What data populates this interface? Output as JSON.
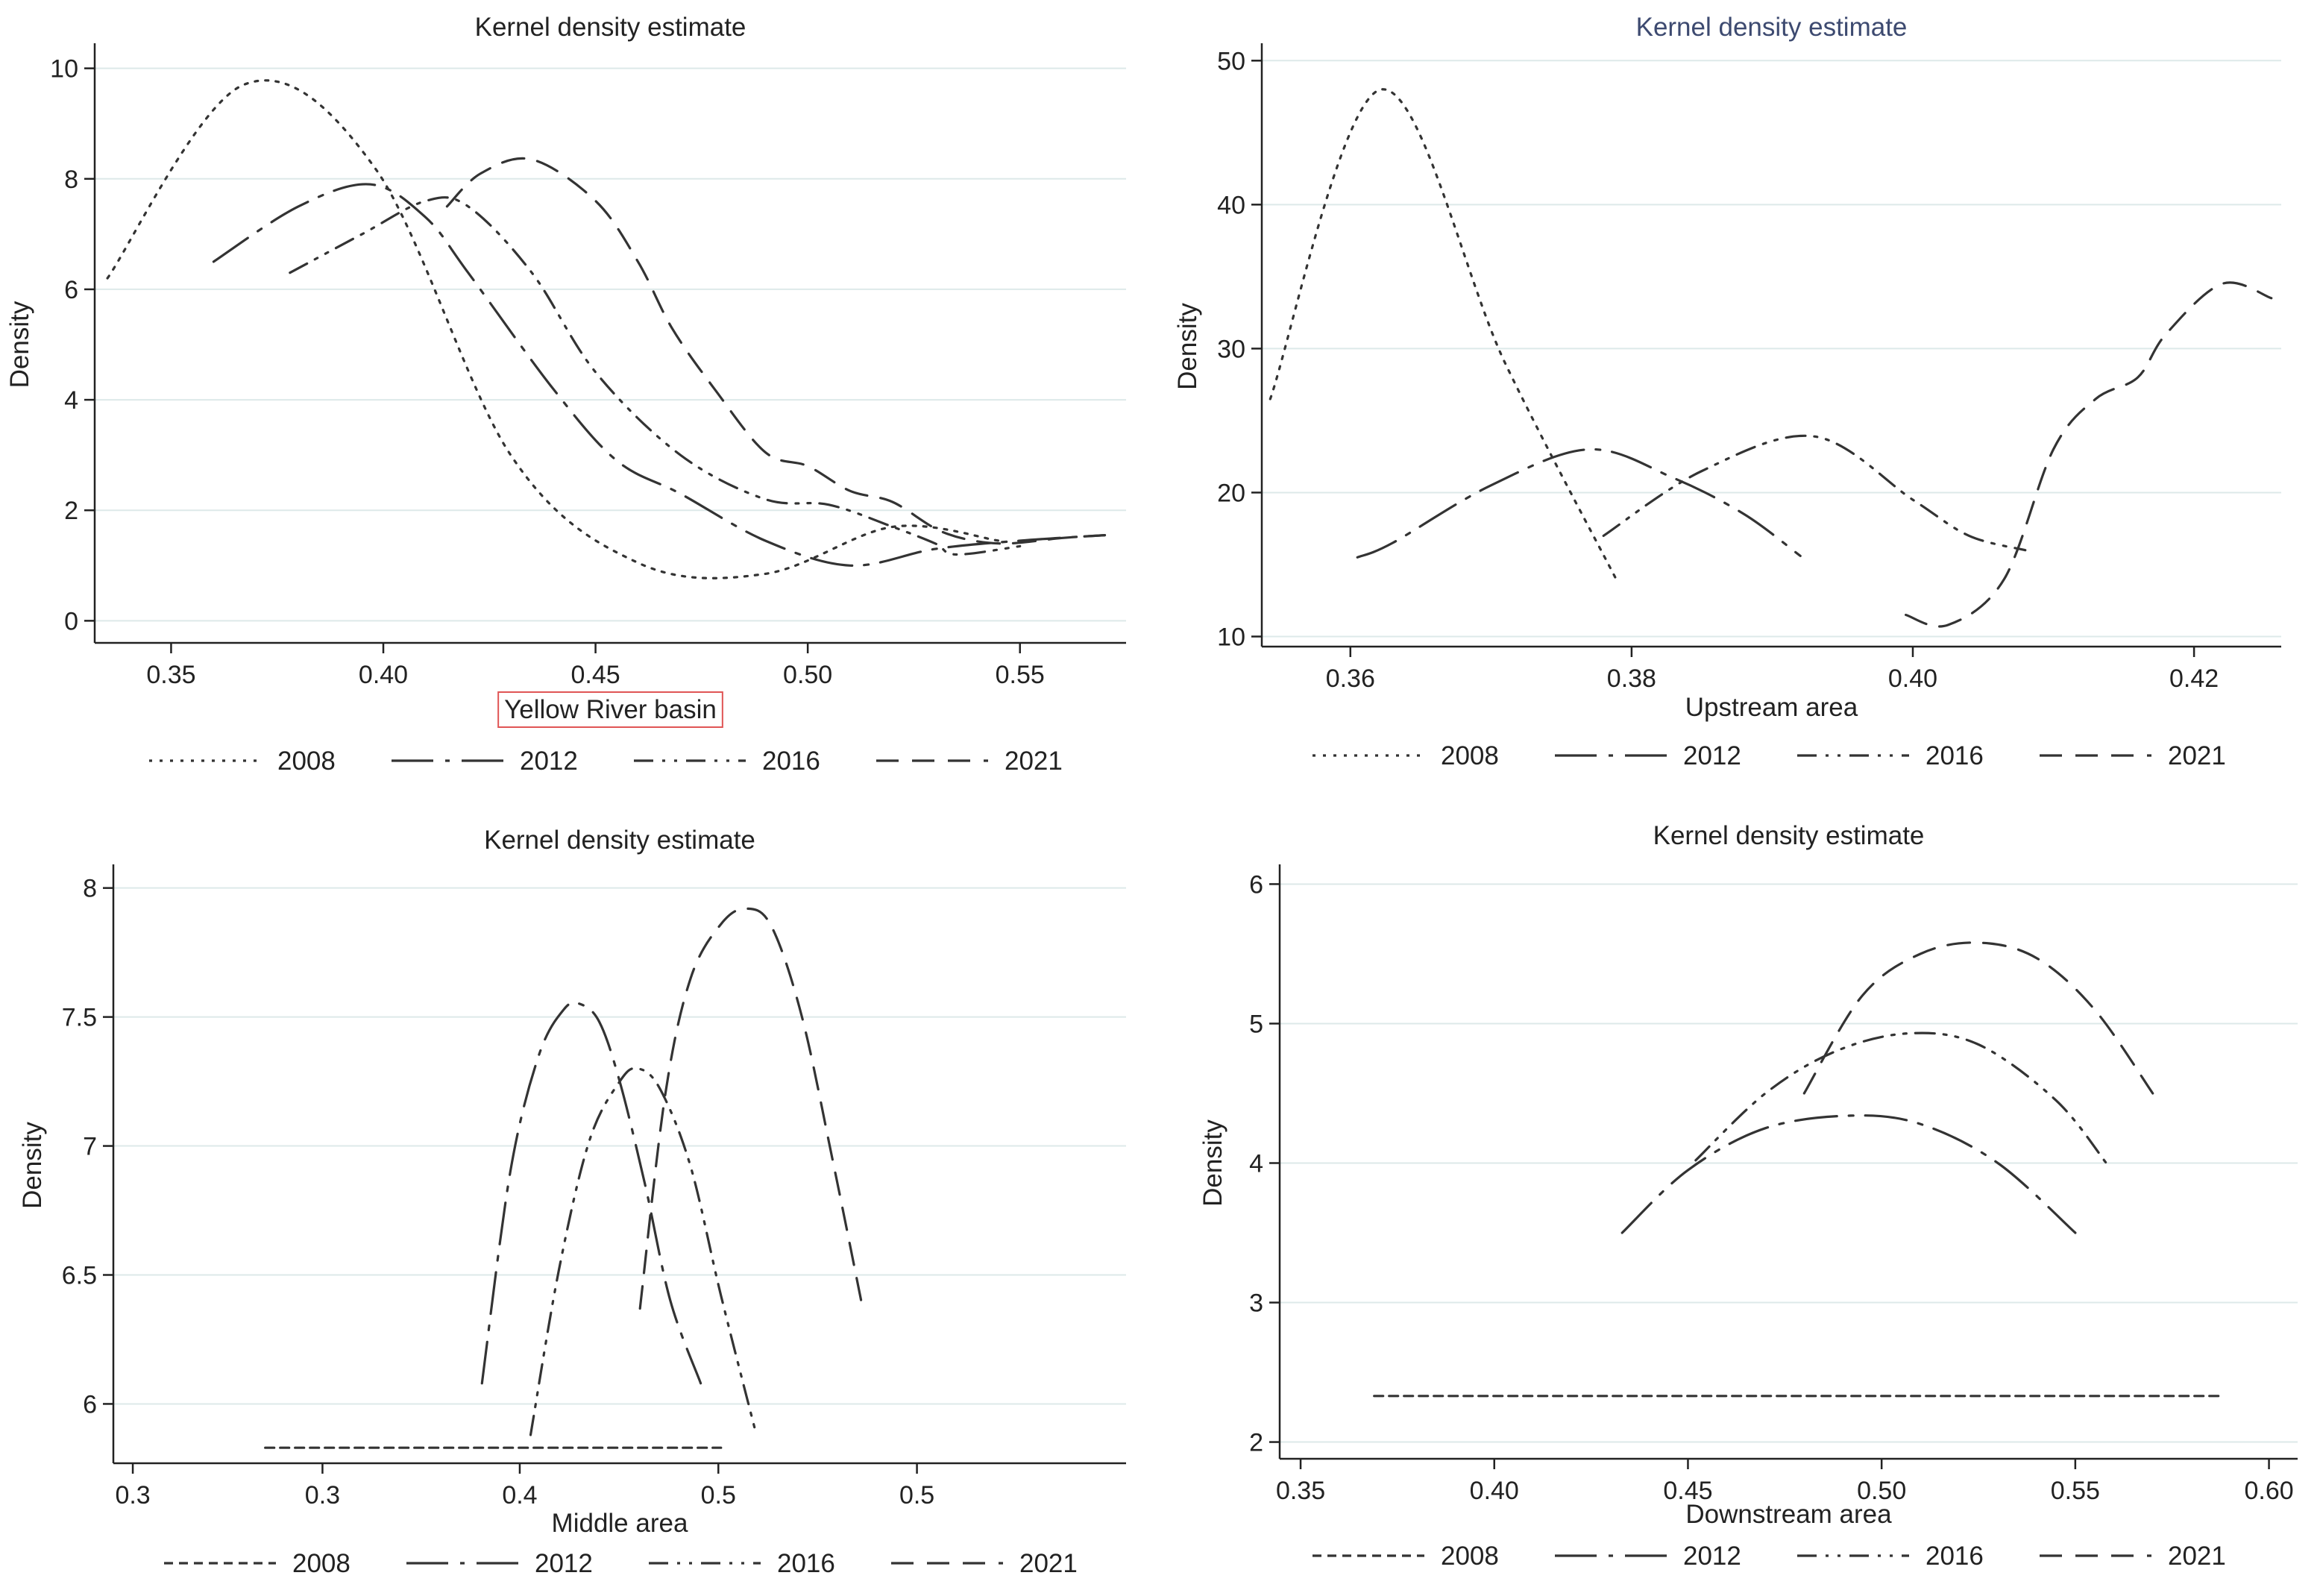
{
  "figure": {
    "background": "#ffffff",
    "grid_color": "#dde9e9",
    "line_color": "#333333"
  },
  "legend_labels": [
    "2008",
    "2012",
    "2016",
    "2021"
  ],
  "chart_data": [
    {
      "type": "line",
      "title": "Kernel density estimate",
      "xlabel": "Yellow River basin",
      "ylabel": "Density",
      "xlim": [
        0.332,
        0.575
      ],
      "ylim": [
        -0.4,
        10.4
      ],
      "xticks": [
        0.35,
        0.4,
        0.45,
        0.5,
        0.55
      ],
      "xtick_labels": [
        "0.35",
        "0.40",
        "0.45",
        "0.50",
        "0.55"
      ],
      "yticks": [
        0,
        2,
        4,
        6,
        8,
        10
      ],
      "ytick_labels": [
        "0",
        "2",
        "4",
        "6",
        "8",
        "10"
      ],
      "grid": true,
      "legend_position": "bottom",
      "xlabel_boxed": true,
      "series": [
        {
          "name": "2008",
          "style": "dotted",
          "x": [
            0.335,
            0.367,
            0.398,
            0.43,
            0.46,
            0.49,
            0.52,
            0.545
          ],
          "y": [
            6.2,
            9.7,
            8.2,
            3.0,
            1.05,
            0.85,
            1.7,
            1.45
          ]
        },
        {
          "name": "2012",
          "style": "longdash",
          "x": [
            0.36,
            0.38,
            0.397,
            0.41,
            0.42,
            0.44,
            0.455,
            0.47,
            0.49,
            0.51,
            0.53,
            0.55,
            0.57
          ],
          "y": [
            6.5,
            7.5,
            7.9,
            7.3,
            6.3,
            4.2,
            2.9,
            2.3,
            1.45,
            1.0,
            1.3,
            1.45,
            1.55
          ]
        },
        {
          "name": "2016",
          "style": "dashdot",
          "x": [
            0.378,
            0.395,
            0.41,
            0.42,
            0.435,
            0.45,
            0.47,
            0.49,
            0.505,
            0.52,
            0.53,
            0.535,
            0.55
          ],
          "y": [
            6.3,
            7.0,
            7.6,
            7.5,
            6.3,
            4.5,
            3.0,
            2.2,
            2.1,
            1.7,
            1.4,
            1.2,
            1.35
          ]
        },
        {
          "name": "2021",
          "style": "dashed",
          "x": [
            0.415,
            0.423,
            0.435,
            0.45,
            0.46,
            0.468,
            0.478,
            0.49,
            0.5,
            0.51,
            0.52,
            0.532,
            0.545,
            0.56,
            0.57
          ],
          "y": [
            7.5,
            8.1,
            8.35,
            7.6,
            6.5,
            5.3,
            4.2,
            3.05,
            2.8,
            2.35,
            2.15,
            1.6,
            1.4,
            1.5,
            1.55
          ]
        }
      ]
    },
    {
      "type": "line",
      "title": "Kernel density estimate",
      "xlabel": "Upstream area",
      "ylabel": "Density",
      "xlim": [
        0.3537,
        0.4262
      ],
      "ylim": [
        9.3,
        51
      ],
      "xticks": [
        0.36,
        0.38,
        0.4,
        0.42
      ],
      "xtick_labels": [
        "0.36",
        "0.38",
        "0.40",
        "0.42"
      ],
      "yticks": [
        10,
        20,
        30,
        40,
        50
      ],
      "ytick_labels": [
        "10",
        "20",
        "30",
        "40",
        "50"
      ],
      "grid": true,
      "legend_position": "bottom",
      "title_color": "#3d4a70",
      "series": [
        {
          "name": "2008",
          "style": "dotted",
          "x": [
            0.3543,
            0.3622,
            0.371,
            0.379
          ],
          "y": [
            26.5,
            48,
            29,
            13.8
          ]
        },
        {
          "name": "2012",
          "style": "longdash",
          "x": [
            0.3605,
            0.363,
            0.37,
            0.377,
            0.383,
            0.388,
            0.392
          ],
          "y": [
            15.5,
            16.5,
            20.5,
            23,
            21,
            18.5,
            15.6
          ]
        },
        {
          "name": "2016",
          "style": "dashdot",
          "x": [
            0.378,
            0.385,
            0.393,
            0.4,
            0.404,
            0.408
          ],
          "y": [
            17,
            21.5,
            23.9,
            19.5,
            17,
            16
          ]
        },
        {
          "name": "2021",
          "style": "dashed",
          "x": [
            0.3995,
            0.4025,
            0.4065,
            0.41,
            0.413,
            0.416,
            0.418,
            0.422,
            0.4255
          ],
          "y": [
            11.5,
            10.8,
            14,
            23,
            26.5,
            28,
            31,
            34.5,
            33.5
          ]
        }
      ]
    },
    {
      "type": "line",
      "title": "Kernel density estimate",
      "xlabel": "Middle area",
      "ylabel": "Density",
      "xlim": [
        0,
        1
      ],
      "ylim": [
        5.77,
        8.08
      ],
      "xticks": [
        0.0192,
        0.2065,
        0.4013,
        0.5974,
        0.7935
      ],
      "xtick_labels": [
        "0.3",
        "0.3",
        "0.4",
        "0.5",
        "0.5"
      ],
      "yticks": [
        6,
        6.5,
        7,
        7.5,
        8
      ],
      "ytick_labels": [
        "6",
        "6.5",
        "7",
        "7.5",
        "8"
      ],
      "grid": true,
      "legend_position": "bottom",
      "series": [
        {
          "name": "2008",
          "style": "shortdash",
          "x": [
            0.15,
            0.6
          ],
          "y": [
            5.83,
            5.83
          ]
        },
        {
          "name": "2012",
          "style": "longdash",
          "x": [
            0.364,
            0.392,
            0.42,
            0.445,
            0.461,
            0.48,
            0.5,
            0.525,
            0.55,
            0.58
          ],
          "y": [
            6.08,
            6.9,
            7.35,
            7.53,
            7.55,
            7.48,
            7.25,
            6.85,
            6.4,
            6.08
          ]
        },
        {
          "name": "2016",
          "style": "dashdot",
          "x": [
            0.412,
            0.44,
            0.47,
            0.5,
            0.518,
            0.54,
            0.57,
            0.6,
            0.635
          ],
          "y": [
            5.88,
            6.52,
            7.02,
            7.25,
            7.3,
            7.22,
            6.92,
            6.42,
            5.88
          ]
        },
        {
          "name": "2021",
          "style": "dashed",
          "x": [
            0.52,
            0.545,
            0.57,
            0.6,
            0.625,
            0.65,
            0.68,
            0.71,
            0.74
          ],
          "y": [
            6.37,
            7.2,
            7.65,
            7.86,
            7.92,
            7.85,
            7.5,
            6.95,
            6.37
          ]
        }
      ]
    },
    {
      "type": "line",
      "title": "Kernel density estimate",
      "xlabel": "Downstream area",
      "ylabel": "Density",
      "xlim": [
        0.3446,
        0.6074
      ],
      "ylim": [
        1.88,
        6.12
      ],
      "xticks": [
        0.35,
        0.4,
        0.45,
        0.5,
        0.55,
        0.6
      ],
      "xtick_labels": [
        "0.35",
        "0.40",
        "0.45",
        "0.50",
        "0.55",
        "0.60"
      ],
      "yticks": [
        2,
        3,
        4,
        5,
        6
      ],
      "ytick_labels": [
        "2",
        "3",
        "4",
        "5",
        "6"
      ],
      "grid": true,
      "legend_position": "bottom",
      "series": [
        {
          "name": "2008",
          "style": "shortdash",
          "x": [
            0.369,
            0.587
          ],
          "y": [
            2.33,
            2.33
          ]
        },
        {
          "name": "2012",
          "style": "longdash",
          "x": [
            0.433,
            0.45,
            0.47,
            0.492,
            0.51,
            0.53,
            0.55
          ],
          "y": [
            3.5,
            3.95,
            4.25,
            4.34,
            4.28,
            4.0,
            3.5
          ]
        },
        {
          "name": "2016",
          "style": "dashdot",
          "x": [
            0.452,
            0.47,
            0.488,
            0.507,
            0.525,
            0.545,
            0.558
          ],
          "y": [
            4.02,
            4.5,
            4.8,
            4.93,
            4.85,
            4.45,
            4.0
          ]
        },
        {
          "name": "2021",
          "style": "dashed",
          "x": [
            0.48,
            0.495,
            0.51,
            0.525,
            0.54,
            0.555,
            0.57
          ],
          "y": [
            4.5,
            5.2,
            5.5,
            5.58,
            5.47,
            5.1,
            4.5
          ]
        }
      ]
    }
  ]
}
